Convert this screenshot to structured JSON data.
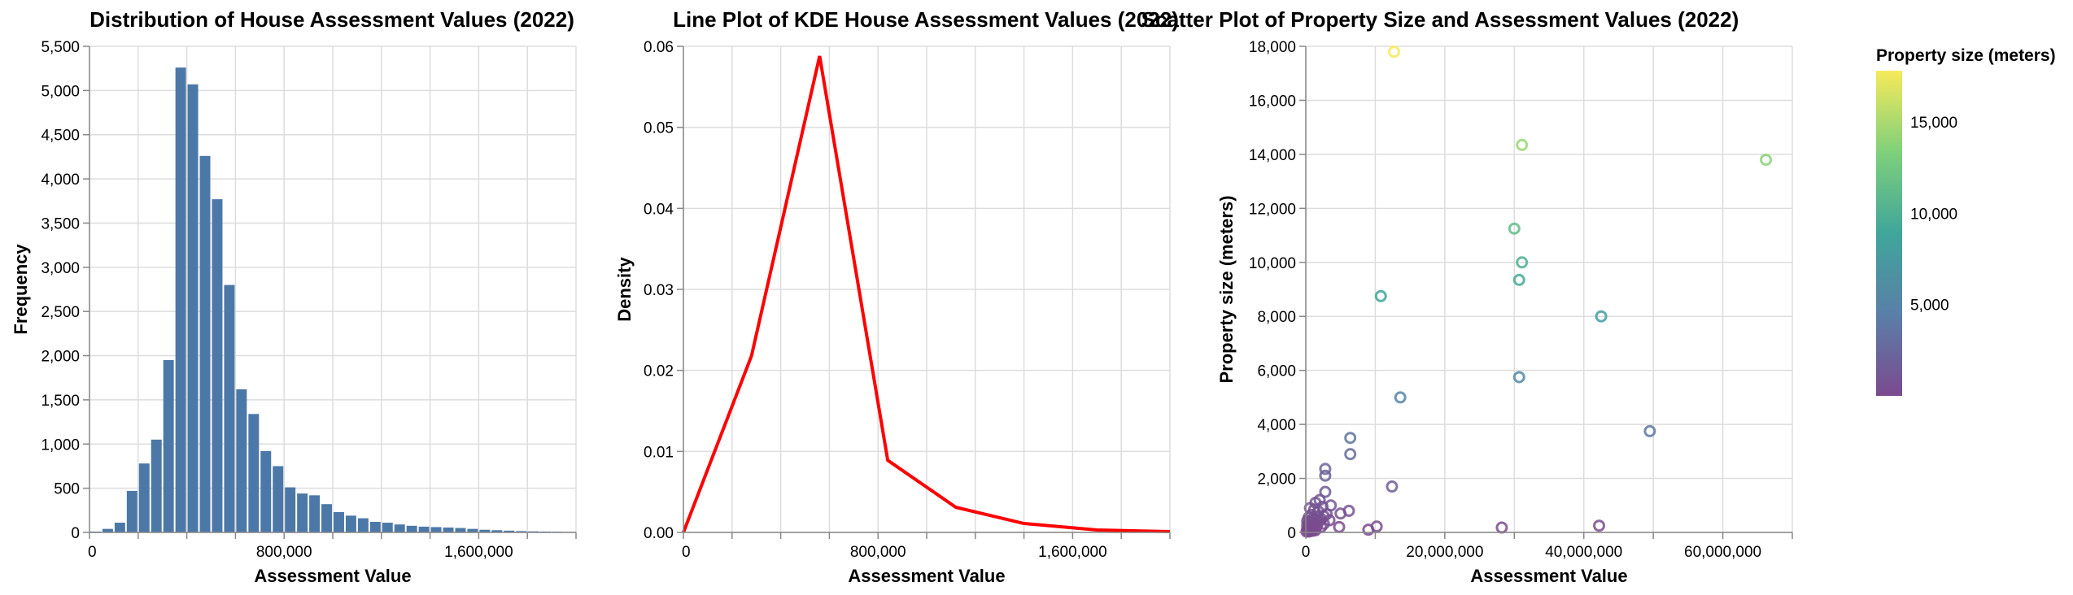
{
  "chart_data": [
    {
      "type": "bar",
      "title": "Distribution of House Assessment Values (2022)",
      "xlabel": "Assessment Value",
      "ylabel": "Frequency",
      "xlim": [
        0,
        2000000
      ],
      "ylim": [
        0,
        5500
      ],
      "x_ticks": [
        0,
        800000,
        1600000
      ],
      "x_tick_labels": [
        "0",
        "800,000",
        "1,600,000"
      ],
      "y_ticks": [
        0,
        500,
        1000,
        1500,
        2000,
        2500,
        3000,
        3500,
        4000,
        4500,
        5000,
        5500
      ],
      "y_tick_labels": [
        "0",
        "500",
        "1,000",
        "1,500",
        "2,000",
        "2,500",
        "3,000",
        "3,500",
        "4,000",
        "4,500",
        "5,000",
        "5,500"
      ],
      "bin_width": 50000,
      "bins_start": [
        0,
        50000,
        100000,
        150000,
        200000,
        250000,
        300000,
        350000,
        400000,
        450000,
        500000,
        550000,
        600000,
        650000,
        700000,
        750000,
        800000,
        850000,
        900000,
        950000,
        1000000,
        1050000,
        1100000,
        1150000,
        1200000,
        1250000,
        1300000,
        1350000,
        1400000,
        1450000,
        1500000,
        1550000,
        1600000,
        1650000,
        1700000,
        1750000,
        1800000,
        1850000,
        1900000,
        1950000
      ],
      "values": [
        10,
        40,
        110,
        470,
        780,
        1050,
        1950,
        5260,
        5070,
        4260,
        3770,
        2800,
        1620,
        1340,
        920,
        750,
        510,
        440,
        420,
        320,
        230,
        190,
        160,
        120,
        110,
        90,
        75,
        65,
        60,
        55,
        50,
        40,
        30,
        25,
        20,
        15,
        12,
        10,
        8,
        6
      ],
      "bar_color": "#4c78a8",
      "grid": true
    },
    {
      "type": "line",
      "title": "Line Plot of KDE House Assessment Values (2022)",
      "xlabel": "Assessment Value",
      "ylabel": "Density",
      "xlim": [
        0,
        2000000
      ],
      "ylim": [
        0,
        0.06
      ],
      "x_ticks": [
        0,
        800000,
        1600000
      ],
      "x_tick_labels": [
        "0",
        "800,000",
        "1,600,000"
      ],
      "y_ticks": [
        0,
        0.01,
        0.02,
        0.03,
        0.04,
        0.05,
        0.06
      ],
      "y_tick_labels": [
        "0.00",
        "0.01",
        "0.02",
        "0.03",
        "0.04",
        "0.05",
        "0.06"
      ],
      "series": [
        {
          "x": [
            0,
            280000,
            560000,
            840000,
            1120000,
            1400000,
            1700000,
            2000000
          ],
          "y": [
            0,
            0.0218,
            0.0588,
            0.0089,
            0.0031,
            0.0011,
            0.0003,
            0.0001
          ],
          "color": "#ff0000"
        }
      ],
      "grid": true
    },
    {
      "type": "scatter",
      "title": "Scatter Plot of Property Size and Assessment Values (2022)",
      "xlabel": "Assessment Value",
      "ylabel": "Property size (meters)",
      "xlim": [
        0,
        70000000
      ],
      "ylim": [
        0,
        18000
      ],
      "x_ticks": [
        0,
        20000000,
        40000000,
        60000000
      ],
      "x_tick_labels": [
        "0",
        "20,000,000",
        "40,000,000",
        "60,000,000"
      ],
      "y_ticks": [
        0,
        2000,
        4000,
        6000,
        8000,
        10000,
        12000,
        14000,
        16000,
        18000
      ],
      "y_tick_labels": [
        "0",
        "2,000",
        "4,000",
        "6,000",
        "8,000",
        "10,000",
        "12,000",
        "14,000",
        "16,000",
        "18,000"
      ],
      "points": [
        {
          "x": 12700000,
          "y": 17800
        },
        {
          "x": 31100000,
          "y": 14350
        },
        {
          "x": 66200000,
          "y": 13800
        },
        {
          "x": 30000000,
          "y": 11250
        },
        {
          "x": 31100000,
          "y": 10000
        },
        {
          "x": 30700000,
          "y": 9350
        },
        {
          "x": 10800000,
          "y": 8750
        },
        {
          "x": 42500000,
          "y": 8000
        },
        {
          "x": 30700000,
          "y": 5750
        },
        {
          "x": 13600000,
          "y": 5000
        },
        {
          "x": 49500000,
          "y": 3750
        },
        {
          "x": 6400000,
          "y": 3500
        },
        {
          "x": 6400000,
          "y": 2900
        },
        {
          "x": 2800000,
          "y": 2350
        },
        {
          "x": 2800000,
          "y": 2100
        },
        {
          "x": 12400000,
          "y": 1700
        },
        {
          "x": 2800000,
          "y": 1500
        },
        {
          "x": 2000000,
          "y": 1200
        },
        {
          "x": 1400000,
          "y": 1100
        },
        {
          "x": 3600000,
          "y": 1000
        },
        {
          "x": 2400000,
          "y": 950
        },
        {
          "x": 600000,
          "y": 900
        },
        {
          "x": 1200000,
          "y": 850
        },
        {
          "x": 6200000,
          "y": 800
        },
        {
          "x": 1800000,
          "y": 780
        },
        {
          "x": 5000000,
          "y": 700
        },
        {
          "x": 3000000,
          "y": 680
        },
        {
          "x": 2600000,
          "y": 600
        },
        {
          "x": 800000,
          "y": 650
        },
        {
          "x": 1600000,
          "y": 600
        },
        {
          "x": 400000,
          "y": 550
        },
        {
          "x": 2200000,
          "y": 500
        },
        {
          "x": 1000000,
          "y": 500
        },
        {
          "x": 3400000,
          "y": 450
        },
        {
          "x": 1400000,
          "y": 450
        },
        {
          "x": 200000,
          "y": 420
        },
        {
          "x": 600000,
          "y": 400
        },
        {
          "x": 1800000,
          "y": 380
        },
        {
          "x": 1200000,
          "y": 350
        },
        {
          "x": 2600000,
          "y": 320
        },
        {
          "x": 400000,
          "y": 300
        },
        {
          "x": 800000,
          "y": 300
        },
        {
          "x": 1000000,
          "y": 250
        },
        {
          "x": 200000,
          "y": 250
        },
        {
          "x": 600000,
          "y": 220
        },
        {
          "x": 1600000,
          "y": 250
        },
        {
          "x": 2200000,
          "y": 200
        },
        {
          "x": 10200000,
          "y": 220
        },
        {
          "x": 4800000,
          "y": 200
        },
        {
          "x": 28200000,
          "y": 180
        },
        {
          "x": 42200000,
          "y": 250
        },
        {
          "x": 9000000,
          "y": 100
        },
        {
          "x": 400000,
          "y": 150
        },
        {
          "x": 800000,
          "y": 130
        },
        {
          "x": 1200000,
          "y": 120
        },
        {
          "x": 200000,
          "y": 100
        },
        {
          "x": 600000,
          "y": 80
        },
        {
          "x": 1000000,
          "y": 60
        },
        {
          "x": 300000,
          "y": 50
        },
        {
          "x": 1400000,
          "y": 80
        },
        {
          "x": 500000,
          "y": 30
        },
        {
          "x": 100000,
          "y": 30
        }
      ],
      "color_scale": "viridis",
      "color_field": "Property size (meters)",
      "legend": {
        "title": "Property size (meters)",
        "placement": "right",
        "ticks": [
          5000,
          10000,
          15000
        ],
        "tick_labels": [
          "5,000",
          "10,000",
          "15,000"
        ],
        "domain": [
          0,
          17800
        ],
        "stops": [
          "#7b4a8e",
          "#5a7fa8",
          "#3fa69a",
          "#7fd07a",
          "#f6ea5a"
        ]
      },
      "grid": true
    }
  ]
}
